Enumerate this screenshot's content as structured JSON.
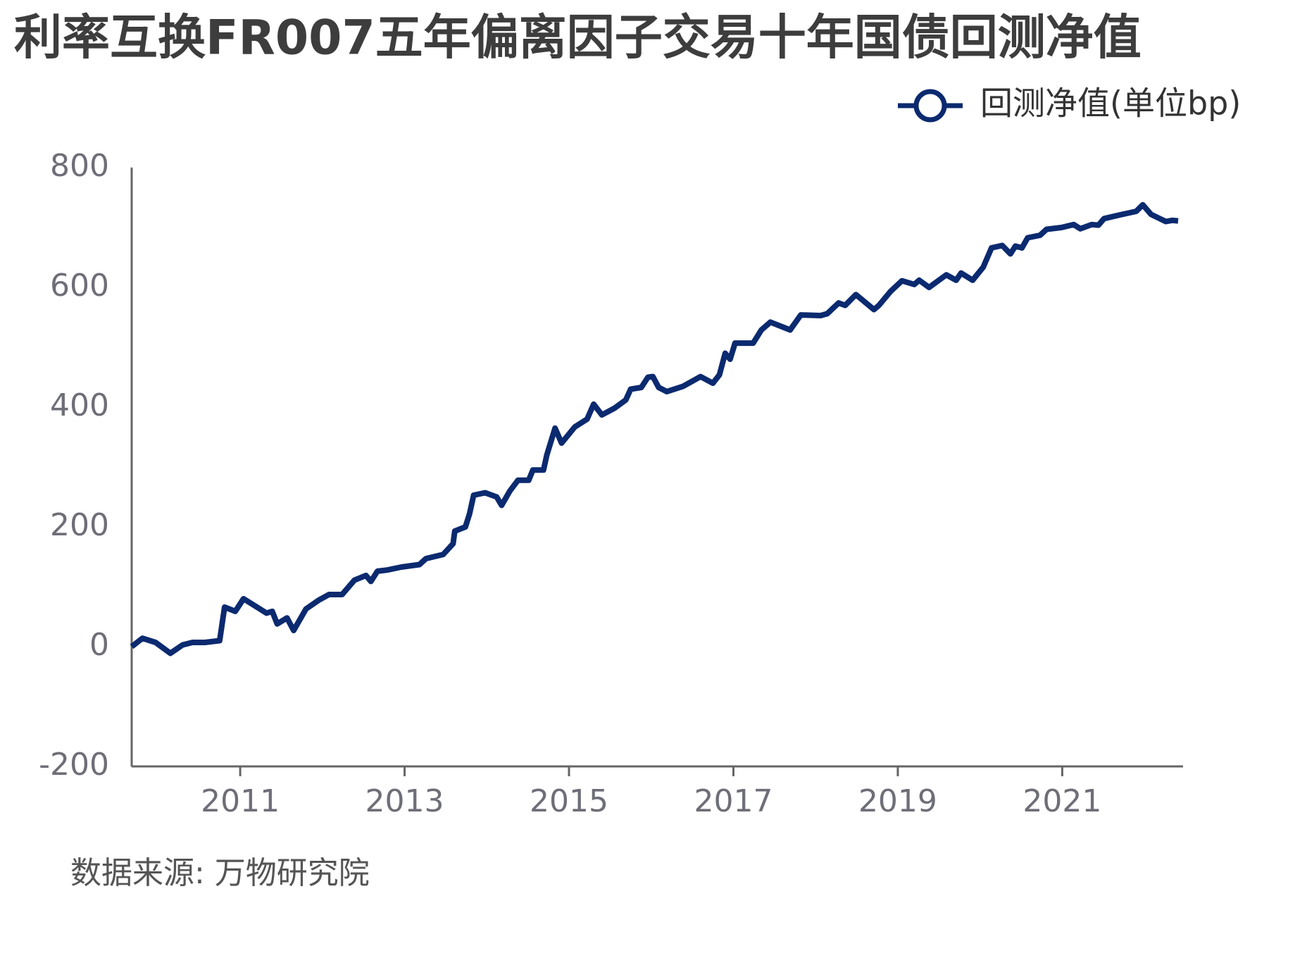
{
  "chart_data": {
    "type": "line",
    "title": "利率互换FR007五年偏离因子交易十年国债回测净值",
    "source": "数据来源: 万物研究院",
    "x": [
      2009.68,
      2009.81,
      2009.97,
      2010.08,
      2010.15,
      2010.3,
      2010.42,
      2010.57,
      2010.75,
      2010.81,
      2010.94,
      2011.04,
      2011.17,
      2011.32,
      2011.39,
      2011.45,
      2011.57,
      2011.65,
      2011.8,
      2011.96,
      2012.08,
      2012.24,
      2012.39,
      2012.53,
      2012.59,
      2012.67,
      2012.79,
      2012.96,
      2013.18,
      2013.26,
      2013.47,
      2013.59,
      2013.61,
      2013.74,
      2013.79,
      2013.84,
      2013.98,
      2014.12,
      2014.18,
      2014.28,
      2014.38,
      2014.51,
      2014.56,
      2014.69,
      2014.73,
      2014.83,
      2014.91,
      2015.07,
      2015.22,
      2015.3,
      2015.4,
      2015.55,
      2015.69,
      2015.75,
      2015.88,
      2015.96,
      2016.02,
      2016.09,
      2016.19,
      2016.39,
      2016.6,
      2016.75,
      2016.83,
      2016.9,
      2016.96,
      2017.02,
      2017.24,
      2017.34,
      2017.45,
      2017.69,
      2017.82,
      2018.06,
      2018.14,
      2018.28,
      2018.36,
      2018.49,
      2018.71,
      2018.77,
      2018.91,
      2019.05,
      2019.2,
      2019.26,
      2019.38,
      2019.59,
      2019.71,
      2019.77,
      2019.91,
      2020.04,
      2020.14,
      2020.27,
      2020.37,
      2020.43,
      2020.51,
      2020.58,
      2020.73,
      2020.81,
      2020.99,
      2021.14,
      2021.22,
      2021.36,
      2021.44,
      2021.51,
      2021.7,
      2021.9,
      2021.98,
      2022.08,
      2022.26,
      2022.34,
      2022.41
    ],
    "series": [
      {
        "name": "回测净值(单位bp)",
        "color": "#0b2a6f",
        "values": [
          0,
          14,
          7,
          -4,
          -11,
          3,
          7,
          7,
          10,
          66,
          59,
          80,
          69,
          56,
          59,
          38,
          48,
          27,
          63,
          78,
          87,
          87,
          111,
          119,
          109,
          126,
          128,
          133,
          137,
          147,
          154,
          172,
          193,
          200,
          222,
          253,
          257,
          250,
          236,
          260,
          278,
          278,
          295,
          295,
          320,
          365,
          340,
          367,
          380,
          405,
          387,
          398,
          412,
          430,
          433,
          450,
          451,
          433,
          426,
          435,
          451,
          440,
          454,
          490,
          480,
          507,
          507,
          529,
          542,
          529,
          554,
          553,
          556,
          574,
          570,
          588,
          563,
          570,
          593,
          611,
          605,
          612,
          600,
          621,
          612,
          624,
          612,
          634,
          666,
          670,
          656,
          669,
          666,
          683,
          687,
          697,
          700,
          705,
          698,
          705,
          704,
          715,
          721,
          727,
          738,
          722,
          710,
          712,
          711
        ]
      }
    ],
    "xlim": [
      2009.68,
      2022.47
    ],
    "xticks": [
      2011,
      2013,
      2015,
      2017,
      2019,
      2021
    ],
    "ylim": [
      -200,
      800
    ],
    "yticks": [
      -200,
      0,
      200,
      400,
      600,
      800
    ],
    "legend": "top-right"
  }
}
